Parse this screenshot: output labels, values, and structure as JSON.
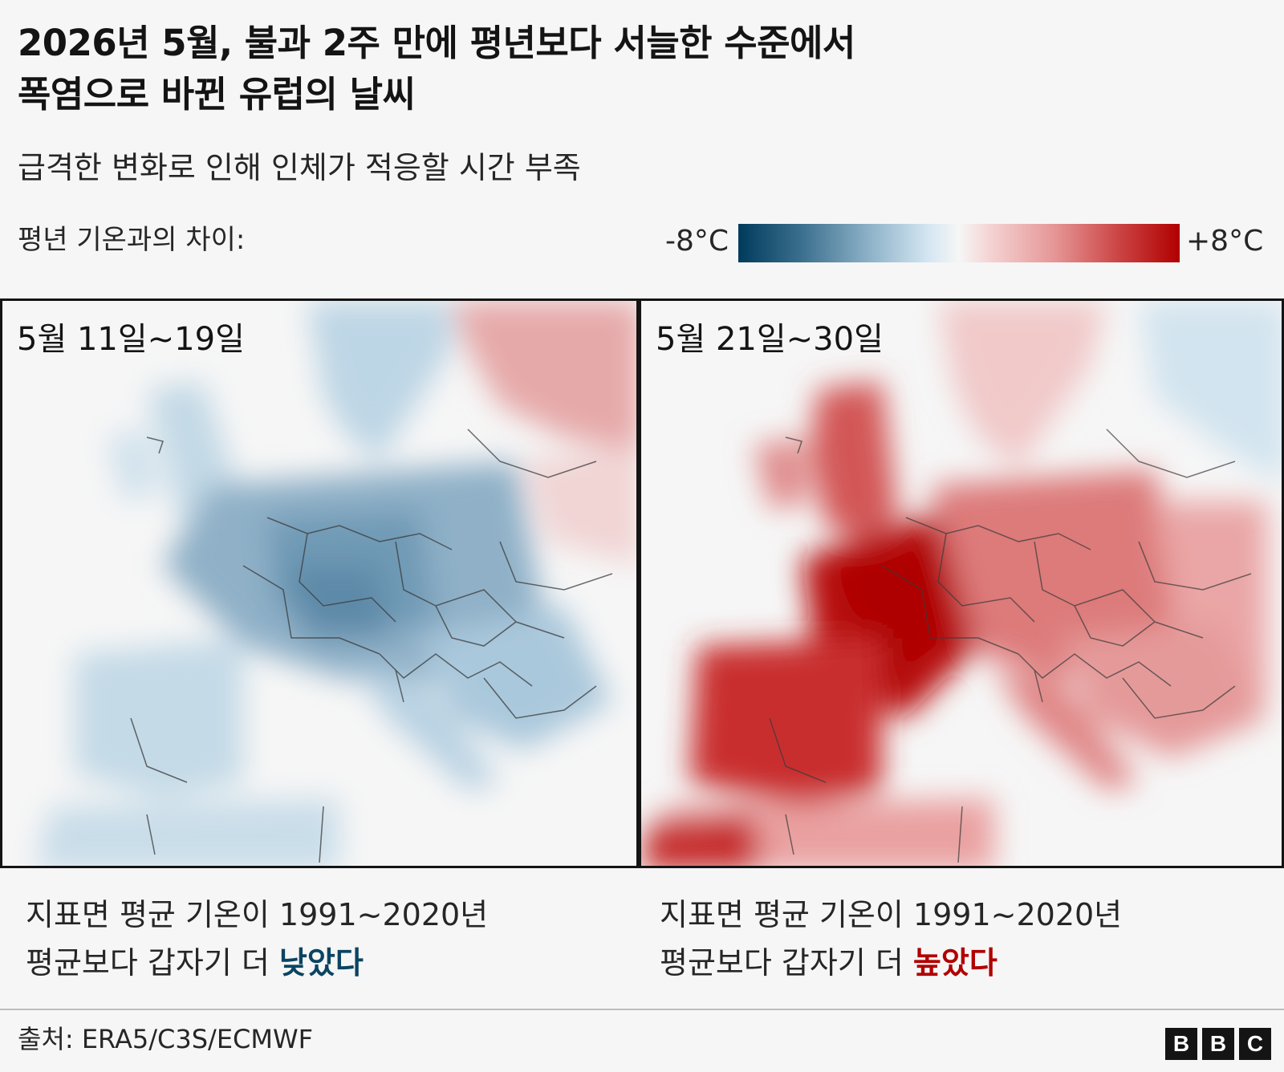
{
  "title": {
    "line1": "2026년 5월, 불과 2주 만에 평년보다 서늘한 수준에서",
    "line2": "폭염으로 바뀐 유럽의 날씨"
  },
  "subtitle": "급격한 변화로 인해 인체가 적응할 시간 부족",
  "legend": {
    "label": "평년 기온과의 차이:",
    "min": "-8°C",
    "max": "+8°C",
    "range": [
      -8,
      8
    ],
    "colors": {
      "cold": "#003b5c",
      "neutral": "#f6f6f6",
      "hot": "#b10000"
    }
  },
  "panels": [
    {
      "date": "5월 11일~19일",
      "caption_line1": "지표면 평균 기온이 1991~2020년",
      "caption_line2_prefix": "평균보다 갑자기 더 ",
      "caption_emphasis": "낮았다",
      "anomaly": "cold"
    },
    {
      "date": "5월 21일~30일",
      "caption_line1": "지표면 평균 기온이 1991~2020년",
      "caption_line2_prefix": "평균보다 갑자기 더 ",
      "caption_emphasis": "높았다",
      "anomaly": "warm"
    }
  ],
  "source": "출처: ERA5/C3S/ECMWF",
  "logo": [
    "B",
    "B",
    "C"
  ]
}
